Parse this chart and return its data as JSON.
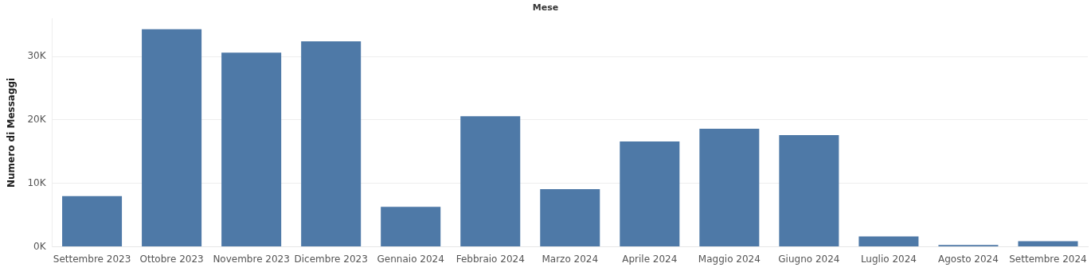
{
  "chart_data": {
    "type": "bar",
    "title": "Mese",
    "ylabel": "Numero di Messaggi",
    "categories": [
      "Settembre 2023",
      "Ottobre 2023",
      "Novembre 2023",
      "Dicembre 2023",
      "Gennaio 2024",
      "Febbraio 2024",
      "Marzo 2024",
      "Aprile 2024",
      "Maggio 2024",
      "Giugno 2024",
      "Luglio 2024",
      "Agosto 2024",
      "Settembre 2024"
    ],
    "values": [
      8000,
      34300,
      30600,
      32400,
      6300,
      20600,
      9100,
      16600,
      18600,
      17600,
      1650,
      300,
      900
    ],
    "color": "#4e79a7",
    "ylim": [
      0,
      36000
    ],
    "yticks": [
      {
        "value": 0,
        "label": "0K"
      },
      {
        "value": 10000,
        "label": "10K"
      },
      {
        "value": 20000,
        "label": "20K"
      },
      {
        "value": 30000,
        "label": "30K"
      }
    ],
    "grid": "y",
    "legend": false
  }
}
